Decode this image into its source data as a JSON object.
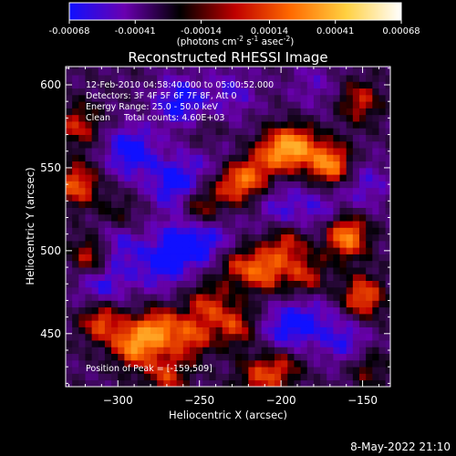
{
  "colorbar": {
    "ticks": [
      "-0.00068",
      "-0.00041",
      "-0.00014",
      "0.00014",
      "0.00041",
      "0.00068"
    ],
    "units_main": "(photons cm",
    "units_sup1": "-2",
    "units_mid1": " s",
    "units_sup2": "-1",
    "units_mid2": " asec",
    "units_sup3": "-2",
    "units_end": ")",
    "colors": [
      "#1010ff",
      "#6a00b0",
      "#000000",
      "#c00000",
      "#ff6a00",
      "#ffd040",
      "#ffffff"
    ]
  },
  "chart_data": {
    "type": "heatmap",
    "title": "Reconstructed RHESSI Image",
    "xlabel": "Heliocentric X (arcsec)",
    "ylabel": "Heliocentric Y (arcsec)",
    "xlim": [
      -332,
      -133
    ],
    "ylim": [
      418,
      611
    ],
    "xticks": [
      -300,
      -250,
      -200,
      -150
    ],
    "yticks": [
      450,
      500,
      550,
      600
    ],
    "value_range": [
      -0.00068,
      0.00068
    ],
    "annotations": [
      "12-Feb-2010 04:58:40.000 to 05:00:52.000",
      "Detectors: 3F 4F 5F 6F 7F 8F, Att 0",
      "Energy Range: 25.0 - 50.0 keV",
      "Clean     Total counts: 4.60E+03"
    ],
    "peak_label": "Position of Peak = [-159,509]",
    "bright_regions": [
      {
        "x": -170,
        "y": 552,
        "level": 1.0
      },
      {
        "x": -160,
        "y": 509,
        "level": 1.0
      },
      {
        "x": -190,
        "y": 563,
        "level": 0.85
      },
      {
        "x": -203,
        "y": 560,
        "level": 0.7
      },
      {
        "x": -218,
        "y": 545,
        "level": 0.6
      },
      {
        "x": -230,
        "y": 540,
        "level": 0.55
      },
      {
        "x": -210,
        "y": 488,
        "level": 0.75
      },
      {
        "x": -228,
        "y": 492,
        "level": 0.55
      },
      {
        "x": -197,
        "y": 505,
        "level": 0.6
      },
      {
        "x": -185,
        "y": 485,
        "level": 0.55
      },
      {
        "x": -150,
        "y": 472,
        "level": 0.8
      },
      {
        "x": -250,
        "y": 526,
        "level": 0.55
      },
      {
        "x": -246,
        "y": 568,
        "level": 0.45
      },
      {
        "x": -290,
        "y": 443,
        "level": 0.95
      },
      {
        "x": -275,
        "y": 453,
        "level": 0.85
      },
      {
        "x": -255,
        "y": 448,
        "level": 0.65
      },
      {
        "x": -245,
        "y": 468,
        "level": 0.55
      },
      {
        "x": -228,
        "y": 455,
        "level": 0.6
      },
      {
        "x": -310,
        "y": 458,
        "level": 0.75
      },
      {
        "x": -315,
        "y": 497,
        "level": 0.8
      },
      {
        "x": -325,
        "y": 540,
        "level": 0.75
      },
      {
        "x": -324,
        "y": 576,
        "level": 0.55
      },
      {
        "x": -270,
        "y": 425,
        "level": 0.6
      },
      {
        "x": -200,
        "y": 430,
        "level": 0.55
      },
      {
        "x": -215,
        "y": 423,
        "level": 0.5
      },
      {
        "x": -152,
        "y": 590,
        "level": 0.55
      },
      {
        "x": -148,
        "y": 430,
        "level": 0.4
      },
      {
        "x": -300,
        "y": 520,
        "level": 0.4
      }
    ],
    "dim_regions": [
      {
        "x": -292,
        "y": 560,
        "level": 1.0
      },
      {
        "x": -262,
        "y": 590,
        "level": 0.9
      },
      {
        "x": -302,
        "y": 505,
        "level": 0.85
      },
      {
        "x": -310,
        "y": 480,
        "level": 0.8
      },
      {
        "x": -265,
        "y": 540,
        "level": 0.95
      },
      {
        "x": -260,
        "y": 505,
        "level": 0.95
      },
      {
        "x": -240,
        "y": 505,
        "level": 0.6
      },
      {
        "x": -275,
        "y": 490,
        "level": 0.7
      },
      {
        "x": -198,
        "y": 452,
        "level": 0.75
      },
      {
        "x": -182,
        "y": 460,
        "level": 0.55
      },
      {
        "x": -200,
        "y": 525,
        "level": 0.6
      },
      {
        "x": -245,
        "y": 560,
        "level": 0.6
      },
      {
        "x": -175,
        "y": 525,
        "level": 0.5
      },
      {
        "x": -148,
        "y": 540,
        "level": 0.55
      },
      {
        "x": -160,
        "y": 445,
        "level": 0.7
      },
      {
        "x": -230,
        "y": 595,
        "level": 0.55
      },
      {
        "x": -180,
        "y": 600,
        "level": 0.4
      }
    ]
  },
  "footer": {
    "timestamp": "8-May-2022 21:10"
  }
}
